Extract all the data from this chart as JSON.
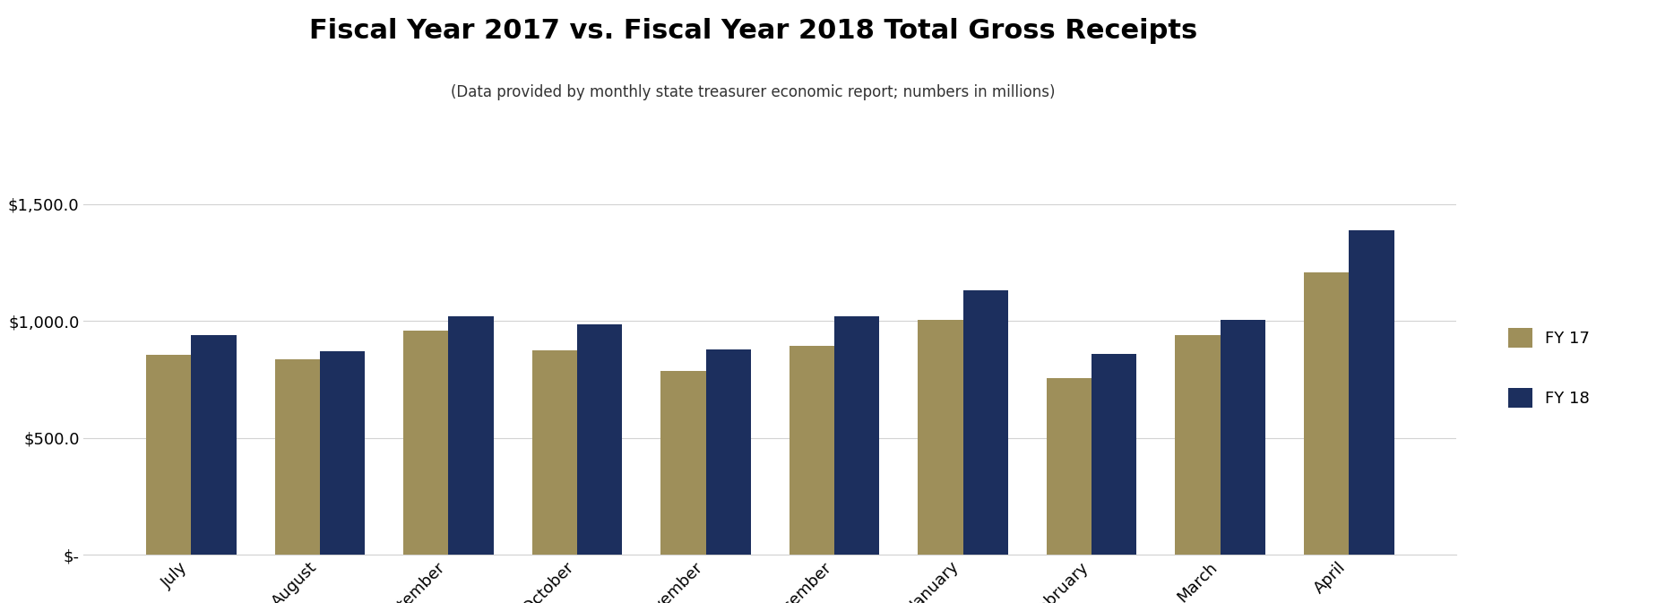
{
  "title": "Fiscal Year 2017 vs. Fiscal Year 2018 Total Gross Receipts",
  "subtitle": "(Data provided by monthly state treasurer economic report; numbers in millions)",
  "categories": [
    "July",
    "August",
    "September",
    "October",
    "November",
    "December",
    "January",
    "February",
    "March",
    "April"
  ],
  "fy17": [
    855,
    835,
    960,
    875,
    785,
    895,
    1005,
    755,
    940,
    1210
  ],
  "fy18": [
    940,
    870,
    1020,
    985,
    880,
    1020,
    1130,
    860,
    1005,
    1390
  ],
  "fy17_color": "#9e8f5a",
  "fy18_color": "#1c2f5e",
  "bar_width": 0.35,
  "ylim": [
    0,
    1600
  ],
  "yticks": [
    0,
    500,
    1000,
    1500
  ],
  "ytick_labels": [
    "$-",
    "$500.0",
    "$1,000.0",
    "$1,500.0"
  ],
  "legend_labels": [
    "FY 17",
    "FY 18"
  ],
  "background_color": "#ffffff",
  "title_fontsize": 22,
  "subtitle_fontsize": 12,
  "tick_fontsize": 13,
  "legend_fontsize": 13
}
